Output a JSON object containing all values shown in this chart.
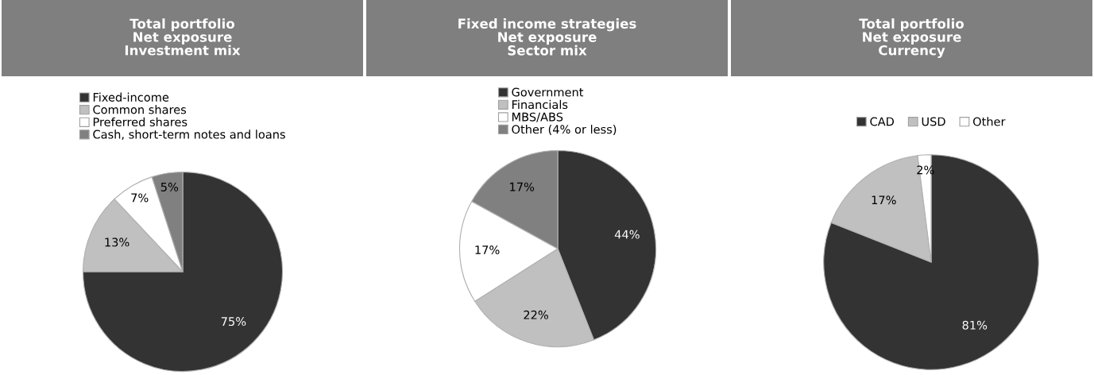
{
  "chart_data": [
    {
      "type": "pie",
      "title": "Total portfolio\nNet exposure\nInvestment mix",
      "categories": [
        "Fixed-income",
        "Common shares",
        "Preferred shares",
        "Cash, short-term notes and loans"
      ],
      "values": [
        75,
        13,
        7,
        5
      ],
      "colors": [
        "#333333",
        "#c0c0c0",
        "#ffffff",
        "#808080"
      ],
      "value_labels": [
        "75%",
        "13%",
        "7%",
        "5%"
      ],
      "legend": "top"
    },
    {
      "type": "pie",
      "title": "Fixed income strategies\nNet exposure\nSector mix",
      "categories": [
        "Government",
        "Financials",
        "MBS/ABS",
        "Other (4% or less)"
      ],
      "values": [
        44,
        22,
        17,
        17
      ],
      "colors": [
        "#333333",
        "#c0c0c0",
        "#ffffff",
        "#808080"
      ],
      "value_labels": [
        "44%",
        "22%",
        "17%",
        "17%"
      ],
      "legend": "top"
    },
    {
      "type": "pie",
      "title": "Total portfolio\nNet exposure\nCurrency",
      "categories": [
        "CAD",
        "USD",
        "Other"
      ],
      "values": [
        81,
        17,
        2
      ],
      "colors": [
        "#333333",
        "#c0c0c0",
        "#ffffff"
      ],
      "value_labels": [
        "81%",
        "17%",
        "2%"
      ],
      "legend": "top"
    }
  ]
}
